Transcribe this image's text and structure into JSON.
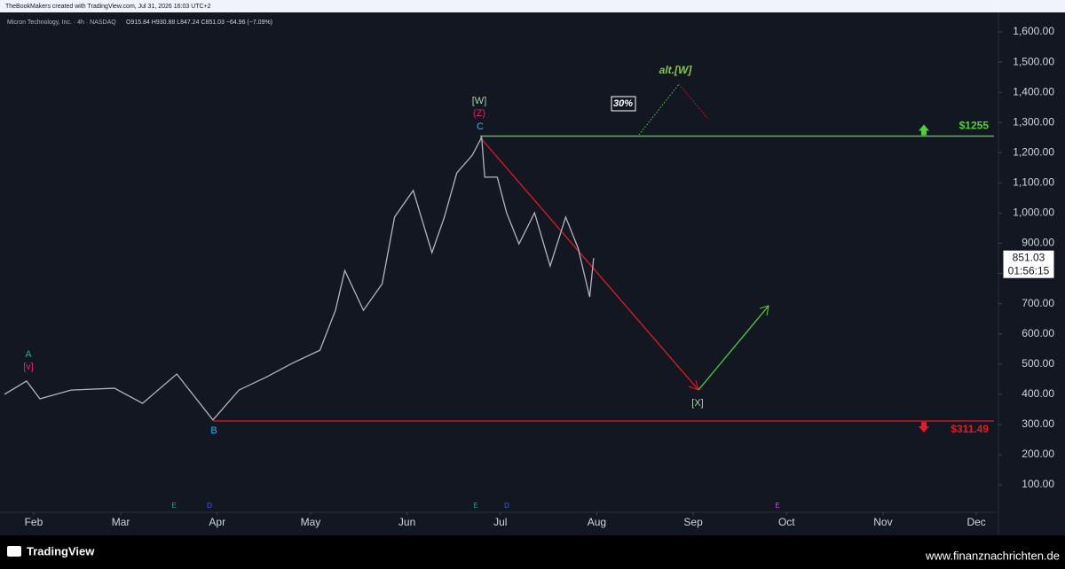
{
  "header": "TheBookMakers created with TradingView.com, Jul 31, 2026 16:03 UTC+2",
  "footer": {
    "brand": "TradingView",
    "source": "www.finanznachrichten.de"
  },
  "chart_data": {
    "type": "line",
    "title": "Micron Technology, Inc. · 4h · NASDAQ",
    "ohlc": "O915.84 H930.88 L847.24 C851.03 −64.96 (−7.09%)",
    "series": [
      {
        "name": "MU",
        "color": "#b2b5be",
        "x": [
          22.6,
          29.7,
          34,
          44,
          58,
          67,
          78,
          89.6,
          98,
          107,
          115,
          124,
          129,
          132,
          138,
          144,
          148,
          154,
          160,
          164,
          168,
          173,
          176,
          177,
          181,
          184,
          188,
          193,
          198,
          203,
          207,
          210.7,
          212
        ],
        "values": [
          400,
          444,
          385,
          414,
          420,
          370,
          467,
          315,
          414,
          458,
          502,
          546,
          678,
          810,
          678,
          766,
          987,
          1075,
          869,
          987,
          1133,
          1192,
          1251,
          1119,
          1119,
          1001,
          898,
          1001,
          825,
          987,
          884,
          722,
          851.03
        ]
      }
    ],
    "xlim": [
      22.6,
      342.1
    ],
    "xticks": [
      {
        "value": 32,
        "label": "Feb"
      },
      {
        "value": 60,
        "label": "Mar"
      },
      {
        "value": 91,
        "label": "Apr"
      },
      {
        "value": 121,
        "label": "May"
      },
      {
        "value": 152,
        "label": "Jun"
      },
      {
        "value": 182,
        "label": "Jul"
      },
      {
        "value": 213,
        "label": "Aug"
      },
      {
        "value": 244,
        "label": "Sep"
      },
      {
        "value": 274,
        "label": "Oct"
      },
      {
        "value": 305,
        "label": "Nov"
      },
      {
        "value": 335,
        "label": "Dec"
      }
    ],
    "ylim": [
      9.2,
      1664.6
    ],
    "yticks": [
      {
        "value": 100,
        "label": "100.00"
      },
      {
        "value": 200,
        "label": "200.00"
      },
      {
        "value": 300,
        "label": "300.00"
      },
      {
        "value": 400,
        "label": "400.00"
      },
      {
        "value": 500,
        "label": "500.00"
      },
      {
        "value": 600,
        "label": "600.00"
      },
      {
        "value": 700,
        "label": "700.00"
      },
      {
        "value": 800,
        "label": "800.00"
      },
      {
        "value": 900,
        "label": "900.00"
      },
      {
        "value": 1000,
        "label": "1,000.00"
      },
      {
        "value": 1100,
        "label": "1,100.00"
      },
      {
        "value": 1200,
        "label": "1,200.00"
      },
      {
        "value": 1300,
        "label": "1,300.00"
      },
      {
        "value": 1400,
        "label": "1,400.00"
      },
      {
        "value": 1500,
        "label": "1,500.00"
      },
      {
        "value": 1600,
        "label": "1,600.00"
      }
    ],
    "levels": [
      {
        "value": 1255,
        "label": "$1255",
        "color": "#4cd137"
      },
      {
        "value": 311.49,
        "label": "$311.49",
        "color": "#e31b23"
      }
    ],
    "last_price": 851.03,
    "countdown": "01:56:15",
    "annotations": {
      "w": "[W]",
      "z": "(Z)",
      "c": "C",
      "a": "A",
      "v": "[v]",
      "b": "B",
      "x": "[X]",
      "alt": "alt.[W]",
      "pct": "30%",
      "e1": "E",
      "d1": "D",
      "e2": "E",
      "d2": "D",
      "e3": "E"
    }
  }
}
